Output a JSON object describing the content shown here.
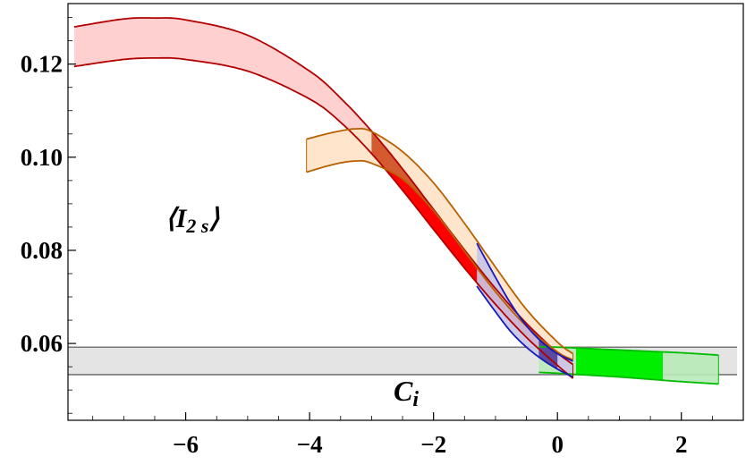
{
  "chart_data": {
    "type": "area",
    "title": "",
    "xlabel": "",
    "ylabel": "",
    "xlim": [
      -7.9,
      3.0
    ],
    "ylim": [
      0.0435,
      0.133
    ],
    "grid": false,
    "x_ticks": [
      -6,
      -4,
      -2,
      0,
      2
    ],
    "y_ticks": [
      0.06,
      0.08,
      0.1,
      0.12
    ],
    "x_tick_labels": [
      "−6",
      "−4",
      "−2",
      "0",
      "2"
    ],
    "y_tick_labels": [
      "0.06",
      "0.08",
      "0.10",
      "0.12"
    ],
    "annotations": {
      "curve_label": "⟨I",
      "curve_label_sub": "2 s",
      "curve_label_close": "⟩",
      "band_label": "C",
      "band_label_sub": "i"
    },
    "colors": {
      "red_band_fill": "#ffcccc",
      "red_band_edge": "#b00000",
      "red_highlight": "#ff0000",
      "orange_band_fill": "#ffe3c8",
      "orange_band_edge": "#b86000",
      "overlap_fill": "#d45a30",
      "blue_band_fill": "#c9c6e6",
      "blue_band_edge": "#1818b8",
      "green_band_fill": "#b8eab8",
      "green_band_edge": "#00bb00",
      "green_highlight": "#00ee00",
      "gray_band_fill": "#e4e4e4",
      "gray_band_edge": "#777777"
    },
    "series": [
      {
        "color": "red",
        "x": [
          -7.8,
          -7.0,
          -6.5,
          -6.0,
          -5.0,
          -4.0,
          -3.5,
          -3.0,
          -2.5,
          -2.0,
          -1.5,
          -1.0,
          -0.5,
          0.0,
          0.25
        ],
        "upper": [
          0.128,
          0.1297,
          0.1299,
          0.1295,
          0.1262,
          0.1185,
          0.1127,
          0.1056,
          0.0975,
          0.0888,
          0.0801,
          0.0718,
          0.0643,
          0.058,
          0.0555
        ],
        "lower": [
          0.1195,
          0.121,
          0.1213,
          0.121,
          0.1185,
          0.1125,
          0.1075,
          0.1008,
          0.0929,
          0.0845,
          0.0762,
          0.0684,
          0.0613,
          0.0553,
          0.0525
        ],
        "highlight_range": [
          -3.0,
          0.0
        ]
      },
      {
        "color": "orange",
        "x": [
          -4.05,
          -3.6,
          -3.25,
          -3.0,
          -2.5,
          -2.0,
          -1.5,
          -1.0,
          -0.5,
          0.0,
          0.25
        ],
        "upper": [
          0.1039,
          0.1054,
          0.1061,
          0.1055,
          0.1012,
          0.0945,
          0.0858,
          0.0764,
          0.0673,
          0.0603,
          0.0578
        ],
        "lower": [
          0.0968,
          0.0985,
          0.0992,
          0.0987,
          0.0953,
          0.0885,
          0.0798,
          0.0711,
          0.0637,
          0.0582,
          0.0565
        ]
      },
      {
        "color": "blue",
        "x": [
          -1.3,
          -1.0,
          -0.75,
          -0.5,
          -0.25,
          0.0,
          0.25
        ],
        "upper": [
          0.0815,
          0.0742,
          0.0685,
          0.0638,
          0.0603,
          0.0578,
          0.0562
        ],
        "lower": [
          0.0723,
          0.0668,
          0.0625,
          0.0592,
          0.0566,
          0.0545,
          0.0528
        ],
        "highlight_range": [
          -0.3,
          0.0
        ]
      },
      {
        "color": "green",
        "x": [
          -0.3,
          0.0,
          0.5,
          1.0,
          1.5,
          2.0,
          2.6
        ],
        "upper": [
          0.0593,
          0.0592,
          0.0589,
          0.0586,
          0.0583,
          0.058,
          0.0575
        ],
        "lower": [
          0.0538,
          0.0536,
          0.0532,
          0.0528,
          0.0523,
          0.0518,
          0.0513
        ],
        "highlight_range": [
          0.3,
          1.7
        ]
      },
      {
        "color": "gray",
        "x": [
          -7.9,
          2.9
        ],
        "upper": [
          0.0592,
          0.0592
        ],
        "lower": [
          0.0533,
          0.0533
        ]
      }
    ]
  }
}
